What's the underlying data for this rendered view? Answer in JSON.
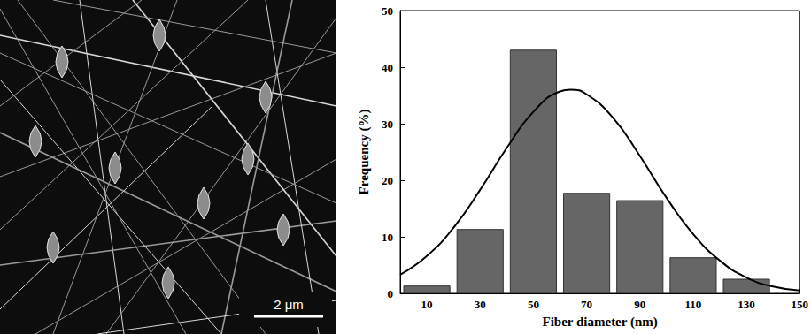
{
  "micrograph": {
    "scale_bar": "2 μm"
  },
  "chart_data": {
    "type": "histogram",
    "xlabel": "Fiber diameter (nm)",
    "ylabel": "Frequency (%)",
    "bins": [
      0,
      20,
      40,
      60,
      80,
      100,
      120,
      140
    ],
    "series": [
      {
        "type": "bar",
        "color": "#666666",
        "values": [
          1.3,
          11.3,
          43,
          17.7,
          16.4,
          6.3,
          2.5
        ]
      },
      {
        "type": "line",
        "color": "#000000",
        "x": [
          0,
          10,
          20,
          30,
          40,
          50,
          60,
          64,
          70,
          80,
          90,
          100,
          110,
          120,
          130,
          140,
          150
        ],
        "values": [
          3.3,
          6.6,
          11.6,
          18.3,
          25.7,
          32.1,
          35.7,
          36,
          35.2,
          31.0,
          24.3,
          16.9,
          10.5,
          5.8,
          2.8,
          1.2,
          0.5
        ]
      }
    ],
    "xlim": [
      0,
      150
    ],
    "xticks": [
      10,
      30,
      50,
      70,
      90,
      110,
      130,
      150
    ],
    "ylim": [
      0,
      50
    ],
    "yticks": [
      0,
      10,
      20,
      30,
      40,
      50
    ],
    "grid": false
  }
}
